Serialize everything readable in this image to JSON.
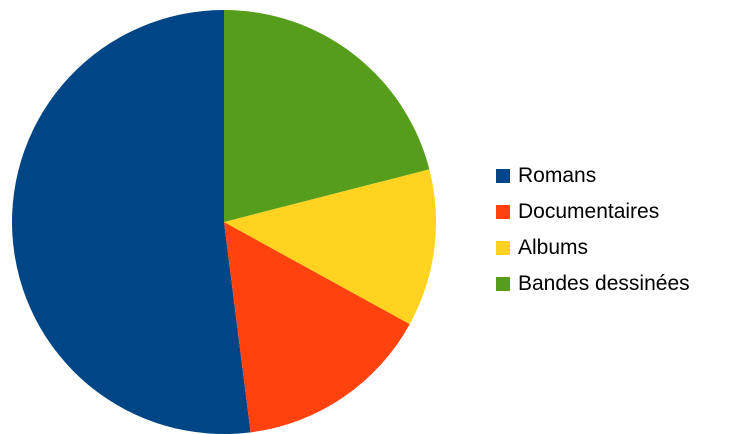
{
  "chart_data": {
    "type": "pie",
    "title": "",
    "categories": [
      "Romans",
      "Documentaires",
      "Albums",
      "Bandes dessinées"
    ],
    "values": [
      52,
      15,
      12,
      21
    ],
    "colors": [
      "#004586",
      "#ff420e",
      "#ffd320",
      "#579d1c"
    ],
    "legend_position": "right"
  }
}
